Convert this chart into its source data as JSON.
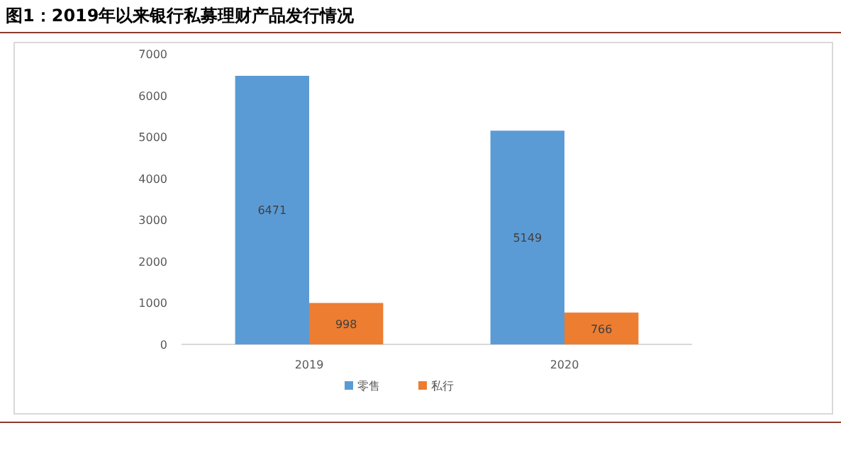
{
  "chart_data": {
    "type": "bar",
    "title": "图1：2019年以来银行私募理财产品发行情况",
    "categories": [
      "2019",
      "2020"
    ],
    "series": [
      {
        "name": "零售",
        "color": "#5b9bd5",
        "values": [
          6471,
          5149
        ]
      },
      {
        "name": "私行",
        "color": "#ed7d31",
        "values": [
          998,
          766
        ]
      }
    ],
    "ylim": [
      0,
      7000
    ],
    "yticks": [
      0,
      1000,
      2000,
      3000,
      4000,
      5000,
      6000,
      7000
    ],
    "data_labels": true,
    "legend": "bottom",
    "grid": false
  }
}
